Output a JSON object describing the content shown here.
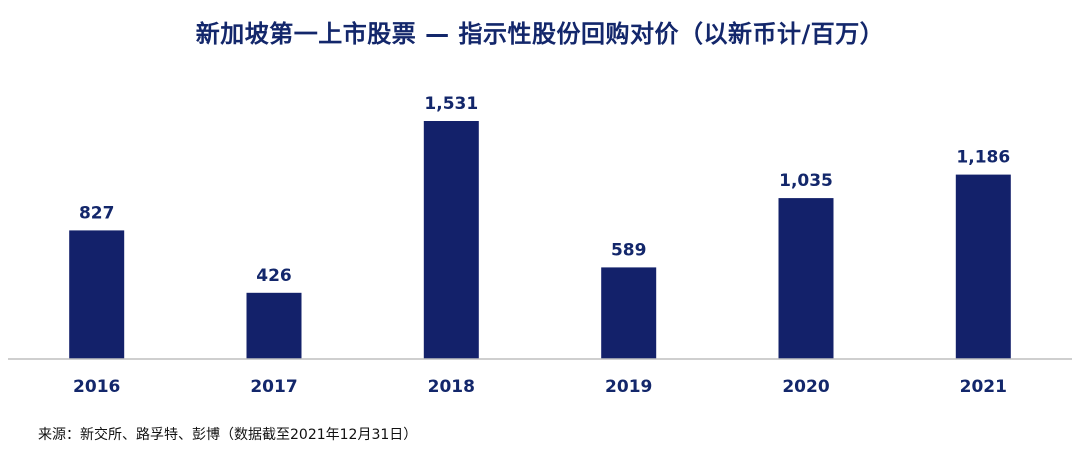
{
  "chart_data": {
    "type": "bar",
    "title": "新加坡第一上市股票 — 指示性股份回购对价（以新币计/百万）",
    "categories": [
      "2016",
      "2017",
      "2018",
      "2019",
      "2020",
      "2021"
    ],
    "values": [
      827,
      426,
      1531,
      589,
      1035,
      1186
    ],
    "value_labels": [
      "827",
      "426",
      "1,531",
      "589",
      "1,035",
      "1,186"
    ],
    "xlabel": "",
    "ylabel": "",
    "ylim": [
      0,
      1531
    ],
    "y_axis_visible": false,
    "grid": false,
    "legend": "none",
    "bar_color": "#13216a",
    "baseline_color": "#bfbfbf",
    "label_color": "#13276b"
  },
  "source_note": "来源：新交所、路孚特、彭博（数据截至2021年12月31日）"
}
